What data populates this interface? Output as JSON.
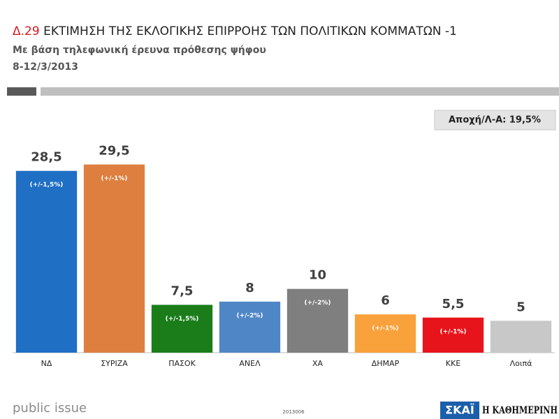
{
  "chart_data": {
    "type": "bar",
    "title_code": "Δ.29",
    "title": "ΕΚΤΙΜΗΣΗ ΤΗΣ ΕΚΛΟΓΙΚΗΣ ΕΠΙΡΡΟΗΣ ΤΩΝ ΠΟΛΙΤΙΚΩΝ ΚΟΜΜΑΤΩΝ -1",
    "subtitle": "Με βάση τηλεφωνική έρευνα πρόθεσης ψήφου",
    "date": "8-12/3/2013",
    "annotation": "Αποχή/Λ-Α: 19,5%",
    "categories": [
      "ΝΔ",
      "ΣΥΡΙΖΑ",
      "ΠΑΣΟΚ",
      "ΑΝΕΛ",
      "ΧΑ",
      "ΔΗΜΑΡ",
      "ΚΚΕ",
      "Λοιπά"
    ],
    "values": [
      28.5,
      29.5,
      7.5,
      8,
      10,
      6,
      5.5,
      5
    ],
    "value_labels": [
      "28,5",
      "29,5",
      "7,5",
      "8",
      "10",
      "6",
      "5,5",
      "5"
    ],
    "error_labels": [
      "(+/-1,5%)",
      "(+/-1%)",
      "(+/-1,5%)",
      "(+/-2%)",
      "(+/-2%)",
      "(+/-1%)",
      "(+/-1%)",
      null
    ],
    "colors": [
      "#1f6fc5",
      "#de7f3f",
      "#1a7d1a",
      "#4f86c6",
      "#7f7f7f",
      "#f9a13b",
      "#e8141b",
      "#c8c8c8"
    ],
    "ylim": [
      0,
      30
    ]
  },
  "footer": {
    "brand": "public issue",
    "code": "2013006",
    "channel": "ΣΚΑΪ",
    "newspaper": "Η ΚΑΘΗΜΕΡΙΝΗ"
  }
}
